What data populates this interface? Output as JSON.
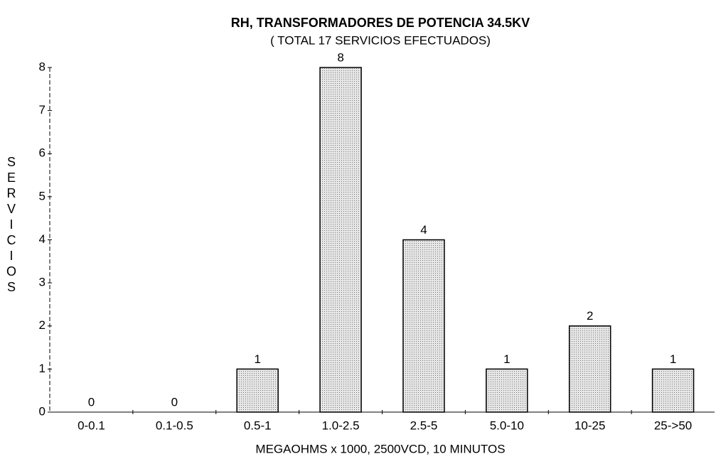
{
  "chart_data": {
    "type": "bar",
    "title": "RH, TRANSFORMADORES DE POTENCIA 34.5KV",
    "subtitle": "( TOTAL 17 SERVICIOS EFECTUADOS)",
    "x_label": "MEGAOHMS x 1000, 2500VCD, 10 MINUTOS",
    "y_label": "SERVICIOS",
    "categories": [
      "0-0.1",
      "0.1-0.5",
      "0.5-1",
      "1.0-2.5",
      "2.5-5",
      "5.0-10",
      "10-25",
      "25->50"
    ],
    "values": [
      0,
      0,
      1,
      8,
      4,
      1,
      2,
      1
    ],
    "color": "#d6d6d6",
    "ylim": [
      0,
      8
    ],
    "yticks": [
      0,
      1,
      2,
      3,
      4,
      5,
      6,
      7,
      8
    ]
  }
}
